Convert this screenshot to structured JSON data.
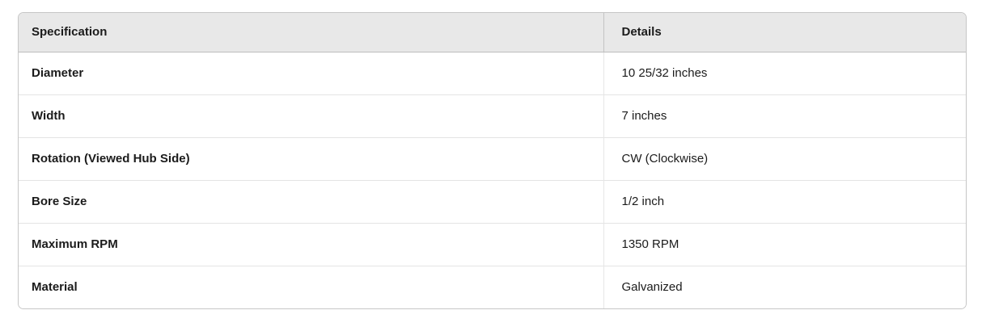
{
  "table": {
    "name": "product-specifications",
    "columns": [
      "Specification",
      "Details"
    ],
    "rows": [
      {
        "label": "Diameter",
        "value": "10 25/32 inches"
      },
      {
        "label": "Width",
        "value": "7 inches"
      },
      {
        "label": "Rotation (Viewed Hub Side)",
        "value": "CW (Clockwise)"
      },
      {
        "label": "Bore Size",
        "value": "1/2 inch"
      },
      {
        "label": "Maximum RPM",
        "value": "1350 RPM"
      },
      {
        "label": "Material",
        "value": "Galvanized"
      }
    ]
  },
  "colors": {
    "header_background": "#e8e8e8",
    "outer_border": "#c6c6c6",
    "header_bottom_border": "#bdbdbd",
    "row_divider": "#e4e4e4",
    "text": "#1b1b1b",
    "page_background": "#ffffff"
  }
}
